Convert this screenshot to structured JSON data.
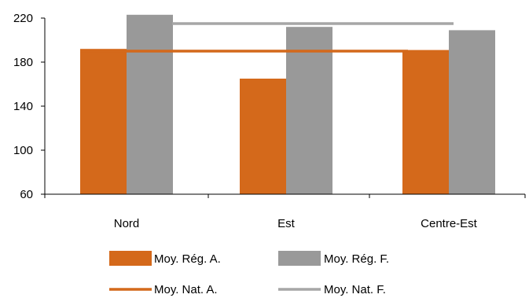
{
  "chart_data": {
    "type": "bar",
    "categories": [
      "Nord",
      "Est",
      "Centre-Est"
    ],
    "ylim": [
      60,
      220
    ],
    "yticks": [
      60,
      100,
      140,
      180,
      220
    ],
    "grid": false,
    "legend_position": "bottom",
    "series": [
      {
        "name": "Moy. Rég. A.",
        "kind": "bar",
        "color": "#D4691B",
        "values": [
          192,
          165,
          191
        ]
      },
      {
        "name": "Moy. Rég. F.",
        "kind": "bar",
        "color": "#999999",
        "values": [
          223,
          212,
          209
        ]
      }
    ],
    "reference_lines": [
      {
        "name": "Moy. Nat. A.",
        "kind": "line",
        "color": "#D4691B",
        "value": 190
      },
      {
        "name": "Moy. Nat. F.",
        "kind": "line",
        "color": "#A6A6A6",
        "value": 215
      }
    ],
    "legend": [
      {
        "label": "Moy. Rég. A.",
        "symbol": "bar",
        "color": "#D4691B"
      },
      {
        "label": "Moy. Rég. F.",
        "symbol": "bar",
        "color": "#999999"
      },
      {
        "label": "Moy. Nat. A.",
        "symbol": "line",
        "color": "#D4691B"
      },
      {
        "label": "Moy. Nat. F.",
        "symbol": "line",
        "color": "#A6A6A6"
      }
    ]
  }
}
